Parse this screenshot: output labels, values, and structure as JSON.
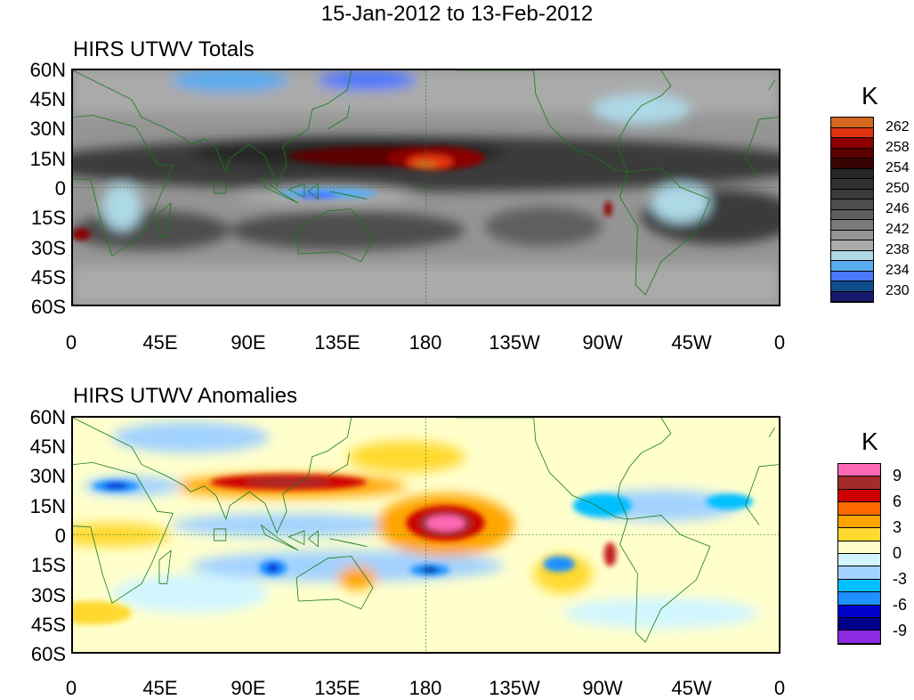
{
  "title": "15-Jan-2012 to 13-Feb-2012",
  "lat_ticks": [
    "60N",
    "45N",
    "30N",
    "15N",
    "0",
    "15S",
    "30S",
    "45S",
    "60S"
  ],
  "lon_ticks": [
    "0",
    "45E",
    "90E",
    "135E",
    "180",
    "135W",
    "90W",
    "45W",
    "0"
  ],
  "panels": [
    {
      "title": "HIRS UTWV Totals",
      "unit": "K",
      "colorbar_labels": [
        "262",
        "258",
        "254",
        "250",
        "246",
        "242",
        "238",
        "234",
        "230"
      ],
      "colors": [
        "#d2691e",
        "#e0320f",
        "#8b0000",
        "#5c0000",
        "#3a0303",
        "#262626",
        "#303030",
        "#3a3a3a",
        "#4e4e4e",
        "#5e5e5e",
        "#7a7a7a",
        "#959595",
        "#ababab",
        "#add8e6",
        "#5aacf0",
        "#4a78ff",
        "#104e8b",
        "#191970"
      ]
    },
    {
      "title": "HIRS UTWV Anomalies",
      "unit": "K",
      "colorbar_labels": [
        "9",
        "6",
        "3",
        "0",
        "-3",
        "-6",
        "-9"
      ],
      "colors": [
        "#ff69b4",
        "#a52a2a",
        "#cd0000",
        "#ff6a00",
        "#ffa500",
        "#ffd92f",
        "#ffffcc",
        "#d2f6ff",
        "#a2d2ff",
        "#00bfff",
        "#1e90ff",
        "#0000cd",
        "#00008b",
        "#8a2be2"
      ]
    }
  ]
}
